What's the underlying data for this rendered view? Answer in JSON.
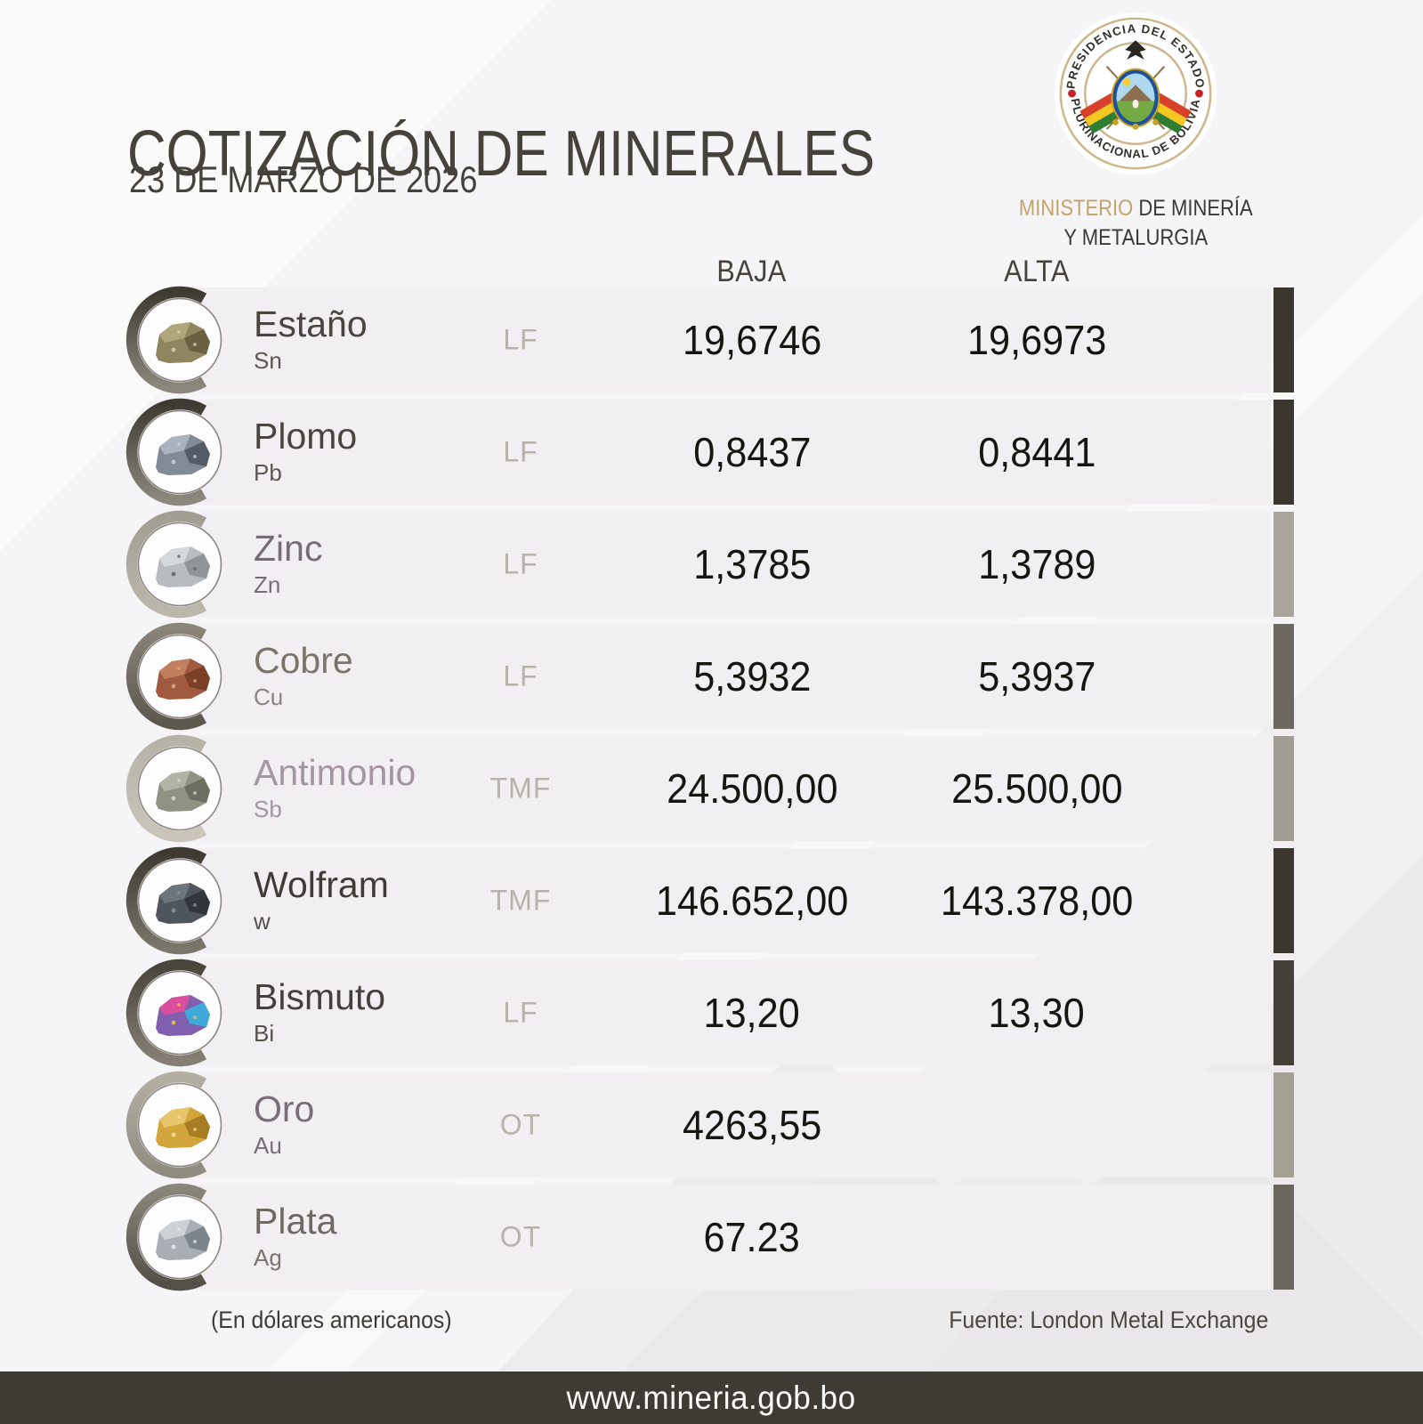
{
  "page": {
    "background": "#f5f4f6",
    "bottom_bar_color": "#3e3a34"
  },
  "header": {
    "title": "COTIZACIÓN DE MINERALES",
    "date": "23 DE MARZO DE 2026",
    "seal_top": "PRESIDENCIA DEL ESTADO",
    "seal_bottom": "PLURINACIONAL DE BOLIVIA",
    "ministry": {
      "highlight": "MINISTERIO",
      "line1_rest": " DE MINERÍA",
      "line2": "Y METALURGIA",
      "highlight_color": "#c3a368",
      "text_color": "#3a3936"
    }
  },
  "table": {
    "columns": {
      "low": "BAJA",
      "high": "ALTA"
    },
    "row_background": "#f1eff2",
    "unit_color": "#b7b3aa",
    "value_color": "#17150f",
    "rows": [
      {
        "name": "Estaño",
        "symbol": "Sn",
        "unit": "LF",
        "low": "19,6746",
        "high": "19,6973",
        "name_color": "#4a453f",
        "symbol_color": "#5c574f",
        "accent": "#3b372f",
        "arc": [
          "#3e3a32",
          "#8d887e"
        ],
        "rock": [
          "#8f855e",
          "#b0a67c",
          "#6a6142",
          "#d8d2b4"
        ]
      },
      {
        "name": "Plomo",
        "symbol": "Pb",
        "unit": "LF",
        "low": "0,8437",
        "high": "0,8441",
        "name_color": "#4a453f",
        "symbol_color": "#5c574f",
        "accent": "#3b372f",
        "arc": [
          "#3e3a32",
          "#8d887e"
        ],
        "rock": [
          "#828a96",
          "#aab2bd",
          "#545b66",
          "#ccd2da"
        ]
      },
      {
        "name": "Zinc",
        "symbol": "Zn",
        "unit": "LF",
        "low": "1,3785",
        "high": "1,3789",
        "name_color": "#776d76",
        "symbol_color": "#776d76",
        "accent": "#aaa59a",
        "arc": [
          "#a29d92",
          "#bcb7ac"
        ],
        "rock": [
          "#b8bcc0",
          "#d6d9dc",
          "#8f9498",
          "#5f6468"
        ]
      },
      {
        "name": "Cobre",
        "symbol": "Cu",
        "unit": "LF",
        "low": "5,3932",
        "high": "5,3937",
        "name_color": "#7a746b",
        "symbol_color": "#8a857c",
        "accent": "#6e6960",
        "arc": [
          "#8a8479",
          "#5c574e"
        ],
        "rock": [
          "#a05a40",
          "#c07f5e",
          "#7c4028",
          "#d9a888"
        ]
      },
      {
        "name": "Antimonio",
        "symbol": "Sb",
        "unit": "TMF",
        "low": "24.500,00",
        "high": "25.500,00",
        "name_color": "#a495a3",
        "symbol_color": "#a495a3",
        "accent": "#a29d92",
        "arc": [
          "#b7b2a7",
          "#cac5ba"
        ],
        "rock": [
          "#8f9383",
          "#b0b4a4",
          "#6b6f5f",
          "#d6d9c9"
        ]
      },
      {
        "name": "Wolfram",
        "symbol": "w",
        "unit": "TMF",
        "low": "146.652,00",
        "high": "143.378,00",
        "name_color": "#3f3b36",
        "symbol_color": "#55514b",
        "accent": "#3b372f",
        "arc": [
          "#3e3a32",
          "#7b766c"
        ],
        "rock": [
          "#4e555c",
          "#6d757d",
          "#31363b",
          "#8f98a1"
        ]
      },
      {
        "name": "Bismuto",
        "symbol": "Bi",
        "unit": "LF",
        "low": "13,20",
        "high": "13,30",
        "name_color": "#44403b",
        "symbol_color": "#55514b",
        "accent": "#443f38",
        "arc": [
          "#49443c",
          "#857f75"
        ],
        "rock": [
          "#7f5fae",
          "#d94f9e",
          "#3fa9d9",
          "#f2c23e"
        ]
      },
      {
        "name": "Oro",
        "symbol": "Au",
        "unit": "OT",
        "low": "4263,55",
        "high": "",
        "name_color": "#786d78",
        "symbol_color": "#786d78",
        "accent": "#a4a094",
        "arc": [
          "#b3aea3",
          "#908b81"
        ],
        "rock": [
          "#d2a43c",
          "#e7c56a",
          "#a87c22",
          "#f4e09a"
        ]
      },
      {
        "name": "Plata",
        "symbol": "Ag",
        "unit": "OT",
        "low": "67.23",
        "high": "",
        "name_color": "#6e6862",
        "symbol_color": "#7a746c",
        "accent": "#6b665e",
        "arc": [
          "#8a857b",
          "#544f47"
        ],
        "rock": [
          "#a8aeb4",
          "#cdd2d7",
          "#7e848b",
          "#e8ebee"
        ]
      }
    ]
  },
  "footer": {
    "currency_note": "(En dólares americanos)",
    "source": "Fuente: London Metal Exchange",
    "website": "www.mineria.gob.bo"
  }
}
